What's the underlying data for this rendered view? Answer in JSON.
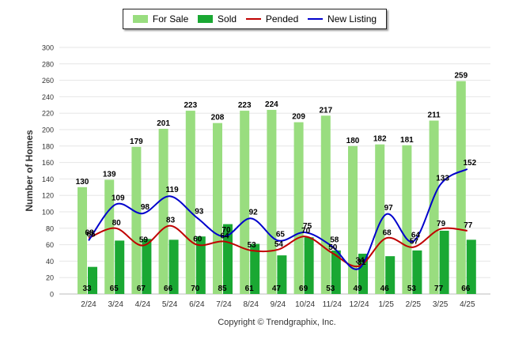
{
  "legend": [
    {
      "name": "For Sale",
      "kind": "bar",
      "color": "#99dd7f"
    },
    {
      "name": "Sold",
      "kind": "bar",
      "color": "#1aa833"
    },
    {
      "name": "Pended",
      "kind": "line",
      "color": "#c00000"
    },
    {
      "name": "New Listing",
      "kind": "line",
      "color": "#0000cc"
    }
  ],
  "copyright": "Copyright © Trendgraphix, Inc.",
  "chart_data": {
    "type": "bar",
    "title": "",
    "ylabel": "Number of Homes",
    "xlabel": "",
    "ylim": [
      0,
      300
    ],
    "yticks": [
      0,
      20,
      40,
      60,
      80,
      100,
      120,
      140,
      160,
      180,
      200,
      220,
      240,
      260,
      280,
      300
    ],
    "grid": true,
    "legend_position": "top",
    "categories": [
      "2/24",
      "3/24",
      "4/24",
      "5/24",
      "6/24",
      "7/24",
      "8/24",
      "9/24",
      "10/24",
      "11/24",
      "12/24",
      "1/25",
      "2/25",
      "3/25",
      "4/25"
    ],
    "series": [
      {
        "name": "For Sale",
        "type": "bar",
        "color": "#99dd7f",
        "values": [
          130,
          139,
          179,
          201,
          223,
          208,
          223,
          224,
          209,
          217,
          180,
          182,
          181,
          211,
          259
        ]
      },
      {
        "name": "Sold",
        "type": "bar",
        "color": "#1aa833",
        "values": [
          33,
          65,
          67,
          66,
          70,
          85,
          61,
          47,
          69,
          53,
          49,
          46,
          53,
          77,
          66
        ]
      },
      {
        "name": "Pended",
        "type": "line",
        "color": "#c00000",
        "values": [
          68,
          80,
          59,
          83,
          60,
          64,
          53,
          54,
          70,
          50,
          34,
          68,
          57,
          79,
          77
        ]
      },
      {
        "name": "New Listing",
        "type": "line",
        "color": "#0000cc",
        "values": [
          65,
          109,
          98,
          119,
          93,
          70,
          92,
          65,
          75,
          58,
          31,
          97,
          64,
          133,
          152
        ]
      }
    ]
  }
}
